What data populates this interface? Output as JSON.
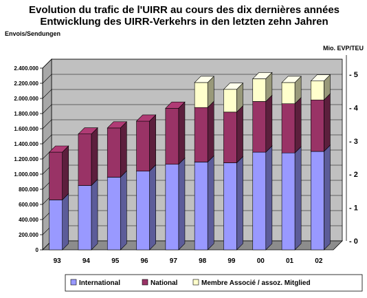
{
  "chart_data": {
    "type": "bar",
    "stacked": true,
    "three_d": true,
    "title": "Evolution du trafic de l'UIRR au cours des dix dernières années",
    "subtitle": "Entwicklung des UIRR-Verkehrs in den letzten zehn Jahren",
    "ylabel": "Envois/Sendungen",
    "y2label": "Mio. EVP/TEU",
    "categories": [
      "93",
      "94",
      "95",
      "96",
      "97",
      "98",
      "99",
      "00",
      "01",
      "02"
    ],
    "series": [
      {
        "name": "International",
        "color": "#9999ff",
        "values": [
          660000,
          850000,
          960000,
          1040000,
          1130000,
          1160000,
          1150000,
          1290000,
          1280000,
          1300000
        ]
      },
      {
        "name": "National",
        "color": "#993366",
        "values": [
          630000,
          680000,
          650000,
          660000,
          740000,
          720000,
          670000,
          670000,
          650000,
          680000
        ]
      },
      {
        "name": "Membre Associé / assoz. Mitglied",
        "color": "#ffffcc",
        "values": [
          0,
          0,
          0,
          0,
          0,
          330000,
          300000,
          300000,
          280000,
          250000
        ]
      }
    ],
    "ylim": [
      0,
      2400000
    ],
    "yticks": [
      "0",
      "200.000",
      "400.000",
      "600.000",
      "800.000",
      "1.000.000",
      "1.200.000",
      "1.400.000",
      "1.600.000",
      "1.800.000",
      "2.000.000",
      "2.200.000",
      "2.400.000"
    ],
    "y2lim": [
      0,
      5
    ],
    "y2ticks": [
      "- 0",
      "- 1",
      "- 2",
      "- 3",
      "- 4",
      "- 5"
    ],
    "grid": true,
    "wall_color": "#c0c0c0",
    "legend_position": "bottom"
  }
}
